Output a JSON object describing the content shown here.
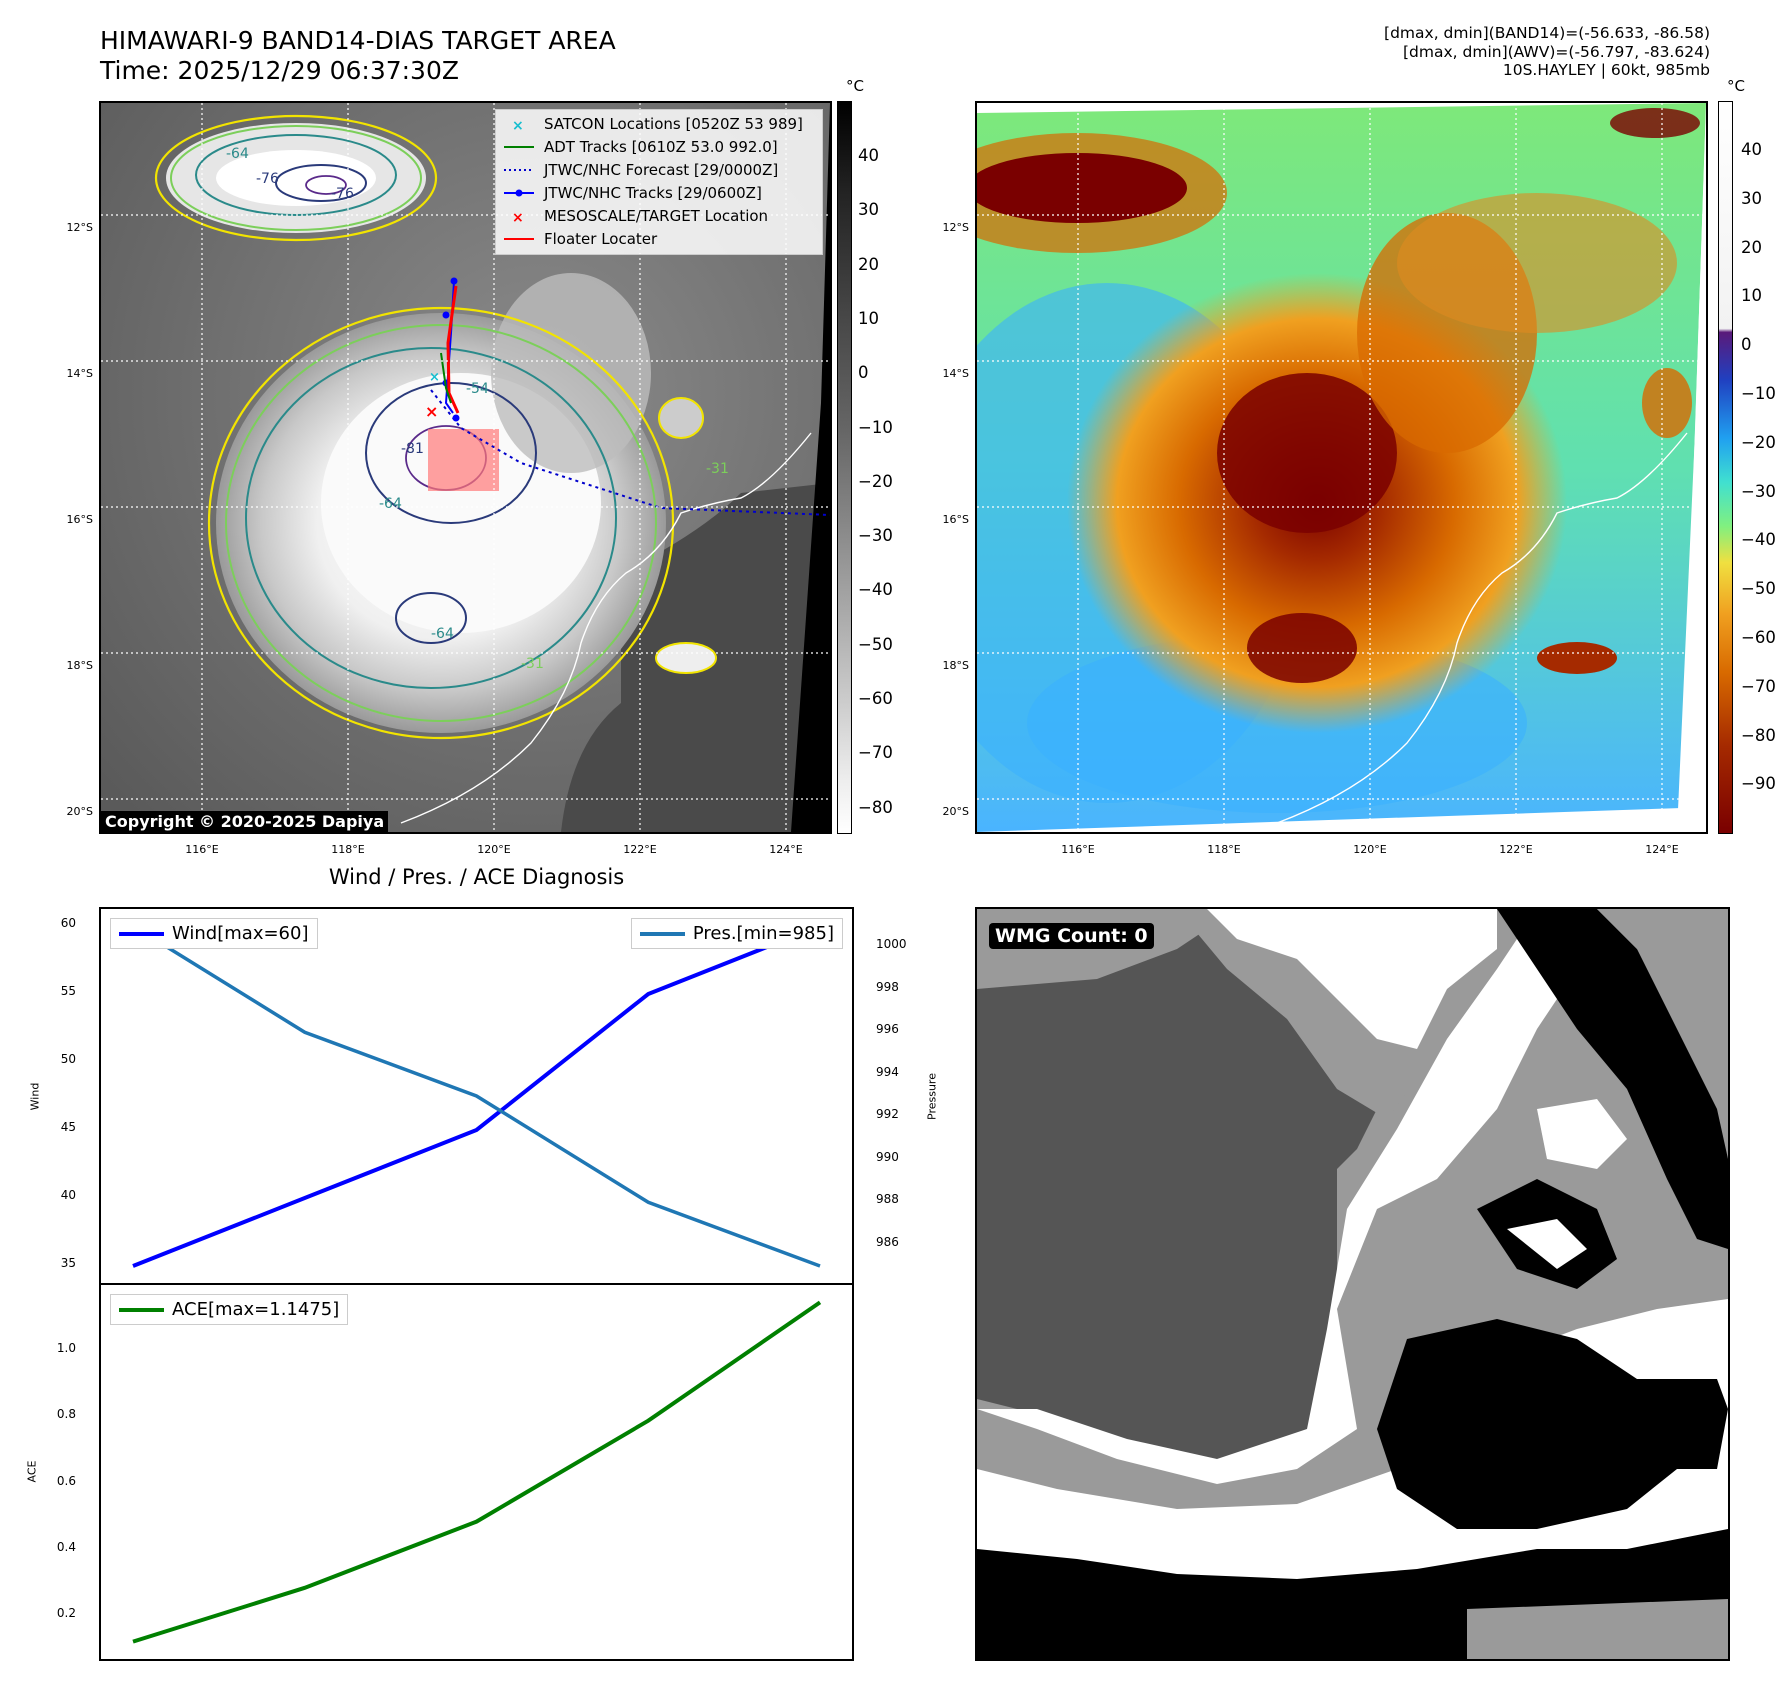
{
  "title": {
    "line1": "HIMAWARI-9 BAND14-DIAS TARGET AREA",
    "line2": "Time: 2025/12/29 06:37:30Z"
  },
  "diag": {
    "line1": "[dmax, dmin](BAND14)=(-56.633, -86.58)",
    "line2": "[dmax, dmin](AWV)=(-56.797, -83.624)",
    "line3": "10S.HAYLEY | 60kt, 985mb"
  },
  "map": {
    "lat_labels": [
      "12°S",
      "14°S",
      "16°S",
      "18°S",
      "20°S"
    ],
    "lon_labels": [
      "116°E",
      "118°E",
      "120°E",
      "122°E",
      "124°E"
    ],
    "colorbar_unit": "°C",
    "ir_colorbar_ticks": [
      "40",
      "30",
      "20",
      "10",
      "0",
      "−10",
      "−20",
      "−30",
      "−40",
      "−50",
      "−60",
      "−70",
      "−80"
    ],
    "awv_colorbar_ticks": [
      "40",
      "30",
      "20",
      "10",
      "0",
      "−10",
      "−20",
      "−30",
      "−40",
      "−50",
      "−60",
      "−70",
      "−80",
      "−90"
    ],
    "contour_labels": [
      "-64",
      "-76",
      "-76",
      "-81",
      "-54",
      "-64",
      "-64",
      "-31",
      "-31"
    ],
    "copyright": "Copyright © 2020-2025 Dapiya",
    "legend": [
      {
        "label": "SATCON Locations [0520Z 53 989]",
        "color": "#17becf",
        "marker": "x"
      },
      {
        "label": "ADT Tracks [0610Z 53.0 992.0]",
        "color": "#008000",
        "marker": "line"
      },
      {
        "label": "JTWC/NHC Forecast [29/0000Z]",
        "color": "#0000cc",
        "marker": "dotted"
      },
      {
        "label": "JTWC/NHC Tracks [29/0600Z]",
        "color": "#0000ff",
        "marker": "line-dot"
      },
      {
        "label": "MESOSCALE/TARGET Location",
        "color": "#ff0000",
        "marker": "x"
      },
      {
        "label": "Floater Locater",
        "color": "#ff0000",
        "marker": "line"
      }
    ]
  },
  "diagnosis_title": "Wind / Pres. / ACE Diagnosis",
  "wmg_label": "WMG Count: 0",
  "chart_data": [
    {
      "type": "line",
      "title": "Wind / Pres. / ACE Diagnosis",
      "x": [
        0,
        1,
        2,
        3,
        4
      ],
      "series": [
        {
          "name": "Wind[max=60]",
          "axis": "left",
          "color": "#0000ff",
          "values": [
            35,
            40,
            45,
            55,
            60
          ]
        },
        {
          "name": "Pres.[min=985]",
          "axis": "right",
          "color": "#1f77b4",
          "values": [
            1001,
            996,
            993,
            988,
            985
          ]
        }
      ],
      "ylabel": "Wind",
      "ylim": [
        33.75,
        61.25
      ],
      "yticks": [
        "35",
        "40",
        "45",
        "50",
        "55",
        "60"
      ],
      "y2label": "Pressure",
      "y2lim": [
        984.2,
        1001.8
      ],
      "y2ticks": [
        "986",
        "988",
        "990",
        "992",
        "994",
        "996",
        "998",
        "1000"
      ]
    },
    {
      "type": "line",
      "x": [
        0,
        1,
        2,
        3,
        4
      ],
      "series": [
        {
          "name": "ACE[max=1.1475]",
          "color": "#008000",
          "values": [
            0.1225,
            0.285,
            0.485,
            0.79,
            1.1475
          ]
        }
      ],
      "ylabel": "ACE",
      "ylim": [
        0.07,
        1.2
      ],
      "yticks": [
        "0.2",
        "0.4",
        "0.6",
        "0.8",
        "1.0"
      ]
    }
  ]
}
